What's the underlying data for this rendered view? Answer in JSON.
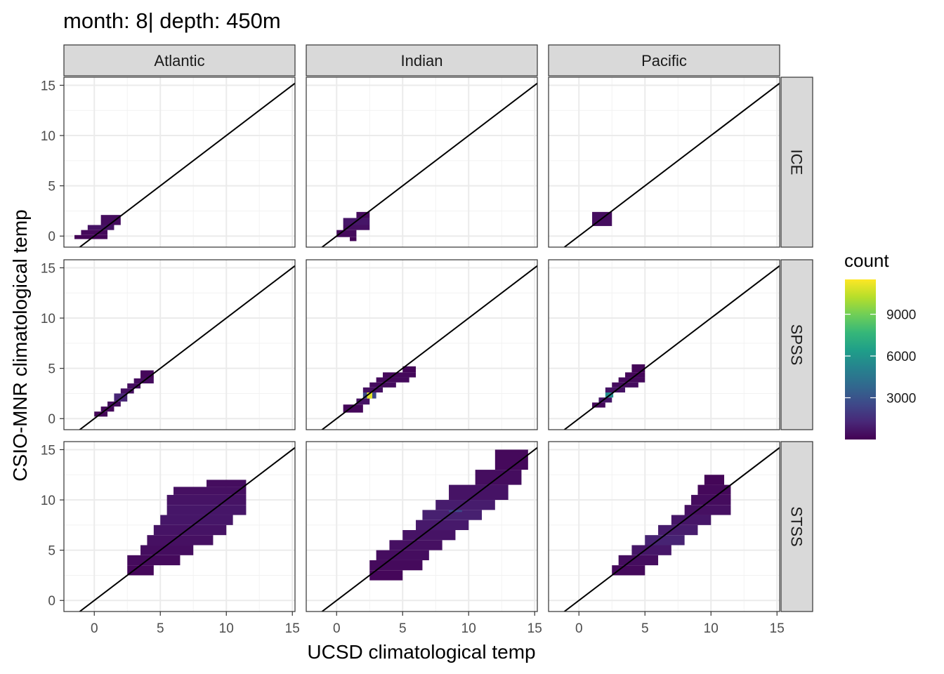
{
  "chart_data": {
    "type": "heatmap",
    "title": "month: 8| depth: 450m",
    "xlabel": "UCSD climatological temp",
    "ylabel": "CSIO-MNR climatological temp",
    "xlim": [
      -2.3,
      15.2
    ],
    "ylim": [
      -1.1,
      15.8
    ],
    "xticks": [
      0,
      5,
      10,
      15
    ],
    "yticks": [
      0,
      5,
      10,
      15
    ],
    "grid": true,
    "facet_columns": [
      "Atlantic",
      "Indian",
      "Pacific"
    ],
    "facet_rows": [
      "ICE",
      "SPSS",
      "STSS"
    ],
    "reference_line": {
      "slope": 1,
      "intercept": 0
    },
    "legend": {
      "title": "count",
      "position": "right",
      "range": [
        0,
        11500
      ],
      "ticks": [
        3000,
        6000,
        9000
      ]
    },
    "panels": [
      {
        "column": "Atlantic",
        "row": "ICE",
        "cells": [
          {
            "x0": -1.5,
            "x1": 1.0,
            "y0": -0.3,
            "y1": 0.1,
            "count": 120
          },
          {
            "x0": -1.0,
            "x1": 1.0,
            "y0": 0.1,
            "y1": 0.6,
            "count": 250
          },
          {
            "x0": -0.5,
            "x1": 1.5,
            "y0": 0.6,
            "y1": 1.1,
            "count": 600
          },
          {
            "x0": 0.5,
            "x1": 2.0,
            "y0": 1.1,
            "y1": 2.1,
            "count": 350
          }
        ]
      },
      {
        "column": "Indian",
        "row": "ICE",
        "cells": [
          {
            "x0": 1.0,
            "x1": 1.5,
            "y0": -0.5,
            "y1": -0.1,
            "count": 120
          },
          {
            "x0": 0.0,
            "x1": 1.5,
            "y0": -0.1,
            "y1": 0.6,
            "count": 300
          },
          {
            "x0": 0.5,
            "x1": 2.5,
            "y0": 0.6,
            "y1": 1.1,
            "count": 500
          },
          {
            "x0": 0.5,
            "x1": 2.5,
            "y0": 1.1,
            "y1": 1.8,
            "count": 700
          },
          {
            "x0": 1.5,
            "x1": 2.5,
            "y0": 1.8,
            "y1": 2.4,
            "count": 300
          }
        ]
      },
      {
        "column": "Pacific",
        "row": "ICE",
        "cells": [
          {
            "x0": 1.0,
            "x1": 2.5,
            "y0": 1.0,
            "y1": 2.4,
            "count": 400
          }
        ]
      },
      {
        "column": "Atlantic",
        "row": "SPSS",
        "cells": [
          {
            "x0": 0.0,
            "x1": 1.0,
            "y0": 0.2,
            "y1": 0.7,
            "count": 150
          },
          {
            "x0": 0.5,
            "x1": 1.5,
            "y0": 0.7,
            "y1": 1.2,
            "count": 250
          },
          {
            "x0": 1.0,
            "x1": 2.0,
            "y0": 1.2,
            "y1": 1.7,
            "count": 400
          },
          {
            "x0": 1.5,
            "x1": 2.5,
            "y0": 1.7,
            "y1": 2.5,
            "count": 1200
          },
          {
            "x0": 2.0,
            "x1": 3.0,
            "y0": 2.5,
            "y1": 3.0,
            "count": 500
          },
          {
            "x0": 2.5,
            "x1": 3.5,
            "y0": 3.0,
            "y1": 3.5,
            "count": 400
          },
          {
            "x0": 3.0,
            "x1": 4.5,
            "y0": 3.5,
            "y1": 4.0,
            "count": 350
          },
          {
            "x0": 3.5,
            "x1": 4.5,
            "y0": 4.0,
            "y1": 4.8,
            "count": 200
          }
        ]
      },
      {
        "column": "Indian",
        "row": "SPSS",
        "cells": [
          {
            "x0": 0.5,
            "x1": 2.0,
            "y0": 0.6,
            "y1": 1.4,
            "count": 200
          },
          {
            "x0": 1.5,
            "x1": 2.5,
            "y0": 1.4,
            "y1": 2.0,
            "count": 600
          },
          {
            "x0": 2.0,
            "x1": 3.0,
            "y0": 2.0,
            "y1": 2.6,
            "count": 2500
          },
          {
            "x0": 2.3,
            "x1": 2.7,
            "y0": 2.0,
            "y1": 2.6,
            "count": 11000
          },
          {
            "x0": 2.0,
            "x1": 3.5,
            "y0": 2.6,
            "y1": 3.1,
            "count": 500
          },
          {
            "x0": 2.5,
            "x1": 4.5,
            "y0": 3.1,
            "y1": 3.6,
            "count": 350
          },
          {
            "x0": 3.0,
            "x1": 5.5,
            "y0": 3.6,
            "y1": 4.1,
            "count": 300
          },
          {
            "x0": 3.5,
            "x1": 6.0,
            "y0": 4.1,
            "y1": 4.6,
            "count": 250
          },
          {
            "x0": 5.0,
            "x1": 6.0,
            "y0": 4.6,
            "y1": 5.2,
            "count": 150
          }
        ]
      },
      {
        "column": "Pacific",
        "row": "SPSS",
        "cells": [
          {
            "x0": 1.0,
            "x1": 2.0,
            "y0": 1.1,
            "y1": 1.6,
            "count": 250
          },
          {
            "x0": 1.5,
            "x1": 2.5,
            "y0": 1.6,
            "y1": 2.1,
            "count": 700
          },
          {
            "x0": 2.0,
            "x1": 2.6,
            "y0": 2.1,
            "y1": 2.6,
            "count": 5500
          },
          {
            "x0": 2.0,
            "x1": 3.5,
            "y0": 2.6,
            "y1": 3.1,
            "count": 600
          },
          {
            "x0": 2.5,
            "x1": 4.5,
            "y0": 3.1,
            "y1": 3.6,
            "count": 400
          },
          {
            "x0": 3.0,
            "x1": 5.0,
            "y0": 3.6,
            "y1": 4.1,
            "count": 300
          },
          {
            "x0": 3.5,
            "x1": 5.0,
            "y0": 4.1,
            "y1": 4.6,
            "count": 200
          },
          {
            "x0": 4.0,
            "x1": 5.0,
            "y0": 4.6,
            "y1": 5.4,
            "count": 150
          }
        ]
      },
      {
        "column": "Atlantic",
        "row": "STSS",
        "cells": [
          {
            "x0": 2.5,
            "x1": 4.5,
            "y0": 2.5,
            "y1": 3.5,
            "count": 200
          },
          {
            "x0": 2.5,
            "x1": 6.5,
            "y0": 3.5,
            "y1": 4.5,
            "count": 300
          },
          {
            "x0": 3.5,
            "x1": 7.5,
            "y0": 4.5,
            "y1": 5.5,
            "count": 400
          },
          {
            "x0": 4.0,
            "x1": 9.0,
            "y0": 5.5,
            "y1": 6.5,
            "count": 500
          },
          {
            "x0": 4.5,
            "x1": 10.0,
            "y0": 6.5,
            "y1": 7.5,
            "count": 600
          },
          {
            "x0": 5.0,
            "x1": 10.5,
            "y0": 7.5,
            "y1": 8.5,
            "count": 700
          },
          {
            "x0": 5.5,
            "x1": 11.5,
            "y0": 8.5,
            "y1": 9.5,
            "count": 700
          },
          {
            "x0": 5.5,
            "x1": 11.5,
            "y0": 9.5,
            "y1": 10.5,
            "count": 600
          },
          {
            "x0": 6.0,
            "x1": 11.5,
            "y0": 10.5,
            "y1": 11.3,
            "count": 500
          },
          {
            "x0": 8.5,
            "x1": 11.5,
            "y0": 11.3,
            "y1": 12.0,
            "count": 400
          }
        ]
      },
      {
        "column": "Indian",
        "row": "STSS",
        "cells": [
          {
            "x0": 2.5,
            "x1": 5.0,
            "y0": 2.0,
            "y1": 3.0,
            "count": 200
          },
          {
            "x0": 2.5,
            "x1": 6.5,
            "y0": 3.0,
            "y1": 4.0,
            "count": 300
          },
          {
            "x0": 3.0,
            "x1": 7.0,
            "y0": 4.0,
            "y1": 5.0,
            "count": 400
          },
          {
            "x0": 4.0,
            "x1": 8.0,
            "y0": 5.0,
            "y1": 6.0,
            "count": 500
          },
          {
            "x0": 5.0,
            "x1": 9.0,
            "y0": 6.0,
            "y1": 7.0,
            "count": 600
          },
          {
            "x0": 6.0,
            "x1": 10.0,
            "y0": 7.0,
            "y1": 8.0,
            "count": 800
          },
          {
            "x0": 6.5,
            "x1": 11.0,
            "y0": 8.0,
            "y1": 9.0,
            "count": 1000
          },
          {
            "x0": 8.5,
            "x1": 9.5,
            "y0": 8.8,
            "y1": 9.8,
            "count": 2500
          },
          {
            "x0": 7.5,
            "x1": 12.0,
            "y0": 9.0,
            "y1": 10.0,
            "count": 900
          },
          {
            "x0": 8.5,
            "x1": 13.0,
            "y0": 10.0,
            "y1": 11.5,
            "count": 600
          },
          {
            "x0": 10.5,
            "x1": 14.0,
            "y0": 11.5,
            "y1": 13.0,
            "count": 400
          },
          {
            "x0": 12.0,
            "x1": 14.5,
            "y0": 13.0,
            "y1": 15.0,
            "count": 250
          }
        ]
      },
      {
        "column": "Pacific",
        "row": "STSS",
        "cells": [
          {
            "x0": 2.5,
            "x1": 5.0,
            "y0": 2.5,
            "y1": 3.5,
            "count": 250
          },
          {
            "x0": 3.0,
            "x1": 6.0,
            "y0": 3.5,
            "y1": 4.5,
            "count": 400
          },
          {
            "x0": 4.0,
            "x1": 7.0,
            "y0": 4.5,
            "y1": 5.5,
            "count": 700
          },
          {
            "x0": 5.0,
            "x1": 8.0,
            "y0": 5.5,
            "y1": 6.5,
            "count": 1100
          },
          {
            "x0": 6.0,
            "x1": 9.0,
            "y0": 6.5,
            "y1": 7.5,
            "count": 900
          },
          {
            "x0": 7.0,
            "x1": 10.0,
            "y0": 7.5,
            "y1": 8.5,
            "count": 700
          },
          {
            "x0": 8.0,
            "x1": 11.5,
            "y0": 8.5,
            "y1": 9.5,
            "count": 500
          },
          {
            "x0": 8.5,
            "x1": 11.5,
            "y0": 9.5,
            "y1": 10.5,
            "count": 350
          },
          {
            "x0": 9.0,
            "x1": 11.5,
            "y0": 10.5,
            "y1": 11.5,
            "count": 250
          },
          {
            "x0": 9.5,
            "x1": 11.0,
            "y0": 11.5,
            "y1": 12.5,
            "count": 150
          }
        ]
      }
    ]
  }
}
